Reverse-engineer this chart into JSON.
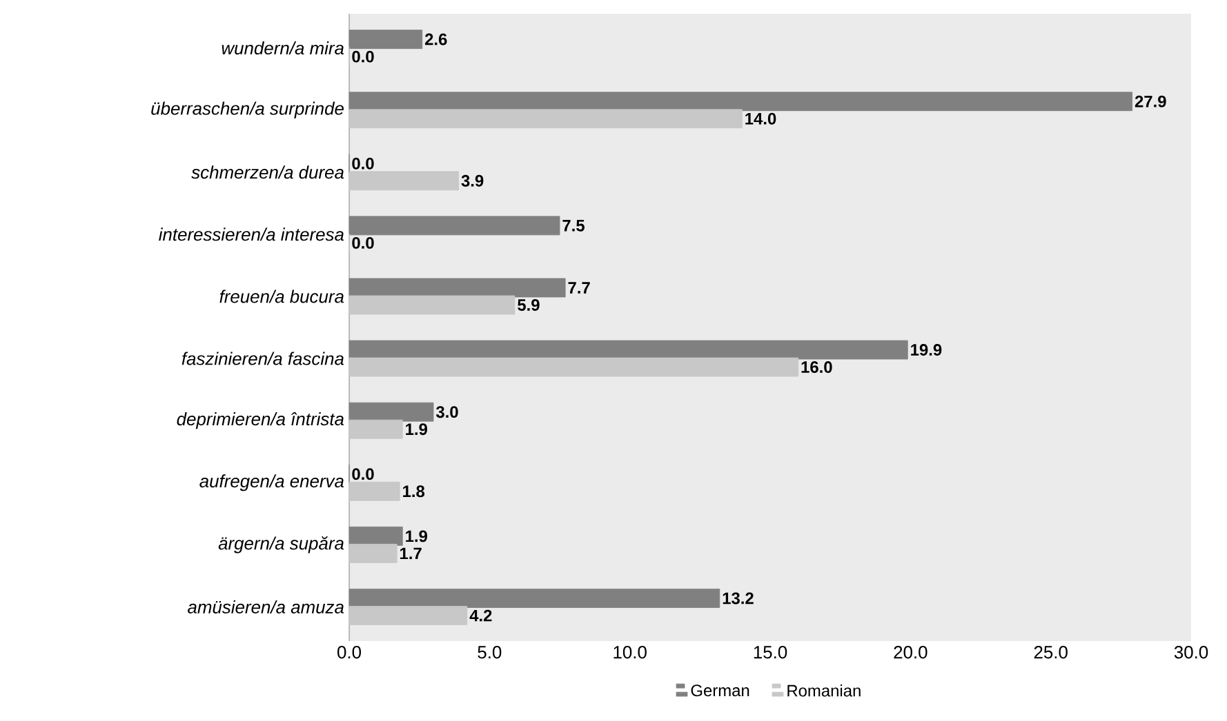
{
  "chart_data": {
    "type": "bar",
    "orientation": "horizontal",
    "categories": [
      "wundern/a mira",
      "überraschen/a surprinde",
      "schmerzen/a durea",
      "interessieren/a interesa",
      "freuen/a bucura",
      "faszinieren/a fascina",
      "deprimieren/a întrista",
      "aufregen/a enerva",
      "ärgern/a supăra",
      "amüsieren/a amuza"
    ],
    "series": [
      {
        "name": "German",
        "color": "#808080",
        "values": [
          2.6,
          27.9,
          0.0,
          7.5,
          7.7,
          19.9,
          3.0,
          0.0,
          1.9,
          13.2
        ],
        "value_labels": [
          "2.6",
          "27.9",
          "0.0",
          "7.5",
          "7.7",
          "19.9",
          "3.0",
          "0.0",
          "1.9",
          "13.2"
        ]
      },
      {
        "name": "Romanian",
        "color": "#c8c8c8",
        "values": [
          0.0,
          14.0,
          3.9,
          0.0,
          5.9,
          16.0,
          1.9,
          1.8,
          1.7,
          4.2
        ],
        "value_labels": [
          "0.0",
          "14.0",
          "3.9",
          "0.0",
          "5.9",
          "16.0",
          "1.9",
          "1.8",
          "1.7",
          "4.2"
        ]
      }
    ],
    "xlim": [
      0,
      30
    ],
    "xticks": [
      {
        "value": 0,
        "label": "0.0"
      },
      {
        "value": 5,
        "label": "5.0"
      },
      {
        "value": 10,
        "label": "10.0"
      },
      {
        "value": 15,
        "label": "15.0"
      },
      {
        "value": 20,
        "label": "20.0"
      },
      {
        "value": 25,
        "label": "25.0"
      },
      {
        "value": 30,
        "label": "30.0"
      }
    ],
    "grid": false,
    "legend": "bottom"
  }
}
